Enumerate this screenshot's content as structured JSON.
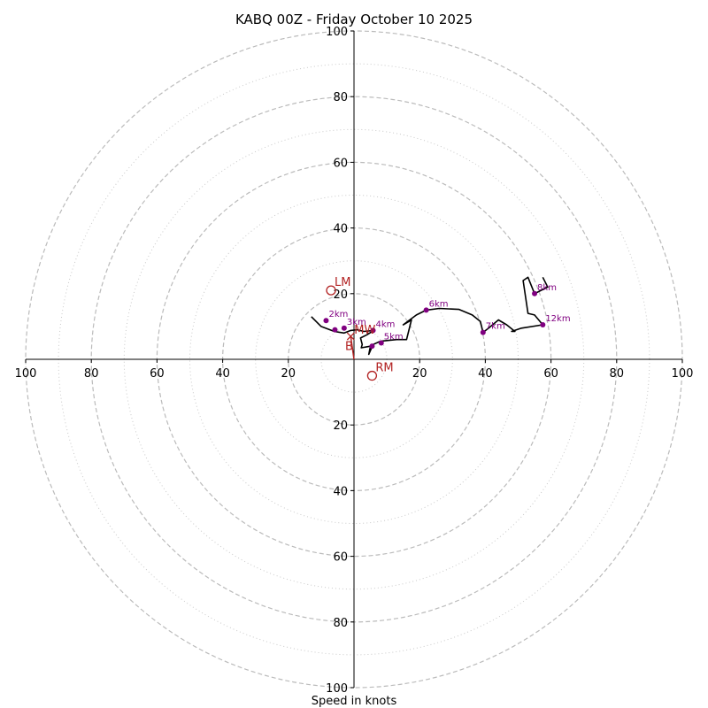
{
  "chart_data": {
    "type": "hodograph",
    "title": "KABQ 00Z - Friday October 10 2025",
    "xlabel": "Speed in knots",
    "range": [
      -100,
      100
    ],
    "major_rings": [
      20,
      40,
      60,
      80,
      100
    ],
    "minor_rings": [
      10,
      30,
      50,
      70,
      90
    ],
    "tick_values": [
      20,
      40,
      60,
      80,
      100
    ],
    "colors": {
      "trace": "#000000",
      "heights": "#800080",
      "motion": "#b22222",
      "grid": "#bbbbbb",
      "axis": "#000000"
    },
    "trace": [
      [
        -13,
        13
      ],
      [
        -10,
        10
      ],
      [
        -6,
        8.5
      ],
      [
        -3,
        8
      ],
      [
        -1,
        8.8
      ],
      [
        1,
        9
      ],
      [
        3,
        8.5
      ],
      [
        6,
        8.8
      ],
      [
        4,
        7.5
      ],
      [
        2,
        6.5
      ],
      [
        2.5,
        4.5
      ],
      [
        2.2,
        3.5
      ],
      [
        5,
        4
      ],
      [
        4.5,
        1.5
      ],
      [
        5.8,
        4.5
      ],
      [
        8,
        5.5
      ],
      [
        13,
        6
      ],
      [
        16,
        6
      ],
      [
        17.5,
        12
      ],
      [
        15,
        10.5
      ],
      [
        19,
        13.5
      ],
      [
        22,
        15
      ],
      [
        26,
        15.5
      ],
      [
        32,
        15.2
      ],
      [
        36,
        13.5
      ],
      [
        38.5,
        11.5
      ],
      [
        39.3,
        8.2
      ],
      [
        41,
        9.5
      ],
      [
        44,
        12
      ],
      [
        46.5,
        10.5
      ],
      [
        49,
        8.5
      ],
      [
        48,
        8.5
      ],
      [
        51,
        9.5
      ],
      [
        57.5,
        10.5
      ],
      [
        55,
        13.5
      ],
      [
        53,
        14
      ],
      [
        51.5,
        24
      ],
      [
        53,
        25
      ],
      [
        55,
        20
      ],
      [
        59,
        22
      ],
      [
        57.5,
        25
      ]
    ],
    "height_points": [
      {
        "label": "2km",
        "u": -8.5,
        "v": 11.8
      },
      {
        "label": "",
        "u": -5.8,
        "v": 9
      },
      {
        "label": "3km",
        "u": -3,
        "v": 9.5
      },
      {
        "label": "4km",
        "u": 5.8,
        "v": 8.8
      },
      {
        "label": "5km",
        "u": 8.3,
        "v": 5
      },
      {
        "label": "",
        "u": 5.5,
        "v": 4
      },
      {
        "label": "6km",
        "u": 22,
        "v": 15
      },
      {
        "label": "7km",
        "u": 39.3,
        "v": 8.2
      },
      {
        "label": "8km",
        "u": 55,
        "v": 20
      },
      {
        "label": "12km",
        "u": 57.5,
        "v": 10.5
      }
    ],
    "storm_motions": [
      {
        "label": "LM",
        "u": -7,
        "v": 21
      },
      {
        "label": "RM",
        "u": 5.5,
        "v": -5
      },
      {
        "label": "MW",
        "u": -1,
        "v": 7
      },
      {
        "label": "B",
        "u": 0,
        "v": 2
      }
    ],
    "shear_vector": {
      "from": [
        0,
        0
      ],
      "to": [
        -1,
        7
      ]
    }
  }
}
